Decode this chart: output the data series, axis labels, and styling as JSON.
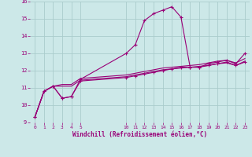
{
  "bg_color": "#cce8e8",
  "grid_color": "#aacccc",
  "line_color": "#990077",
  "title": "Windchill (Refroidissement éolien,°C)",
  "xlim": [
    -0.5,
    23.5
  ],
  "ylim": [
    9,
    16
  ],
  "yticks": [
    9,
    10,
    11,
    12,
    13,
    14,
    15,
    16
  ],
  "xticks": [
    0,
    1,
    2,
    3,
    4,
    5,
    10,
    11,
    12,
    13,
    14,
    15,
    16,
    17,
    18,
    19,
    20,
    21,
    22,
    23
  ],
  "series1_x": [
    0,
    1,
    2,
    3,
    4,
    5,
    10,
    11,
    12,
    13,
    14,
    15,
    16,
    17,
    18,
    19,
    20,
    21,
    22,
    23
  ],
  "series1_y": [
    9.3,
    10.8,
    11.1,
    10.4,
    10.5,
    11.5,
    13.0,
    13.5,
    14.9,
    15.3,
    15.5,
    15.7,
    15.1,
    12.2,
    12.2,
    12.4,
    12.5,
    12.6,
    12.4,
    13.0
  ],
  "series2_x": [
    0,
    1,
    2,
    3,
    4,
    5,
    10,
    11,
    12,
    13,
    14,
    15,
    16,
    17,
    18,
    19,
    20,
    21,
    22,
    23
  ],
  "series2_y": [
    9.3,
    10.8,
    11.1,
    10.4,
    10.5,
    11.4,
    11.6,
    11.7,
    11.8,
    11.9,
    12.0,
    12.1,
    12.2,
    12.2,
    12.2,
    12.3,
    12.4,
    12.5,
    12.3,
    12.5
  ],
  "series3_x": [
    0,
    1,
    2,
    3,
    4,
    5,
    10,
    11,
    12,
    13,
    14,
    15,
    16,
    17,
    18,
    19,
    20,
    21,
    22,
    23
  ],
  "series3_y": [
    9.3,
    10.8,
    11.1,
    11.1,
    11.1,
    11.45,
    11.65,
    11.75,
    11.85,
    11.95,
    12.05,
    12.1,
    12.15,
    12.2,
    12.25,
    12.3,
    12.4,
    12.45,
    12.3,
    12.55
  ],
  "series4_x": [
    0,
    1,
    2,
    3,
    4,
    5,
    10,
    11,
    12,
    13,
    14,
    15,
    16,
    17,
    18,
    19,
    20,
    21,
    22,
    23
  ],
  "series4_y": [
    9.3,
    10.8,
    11.1,
    11.2,
    11.2,
    11.55,
    11.75,
    11.85,
    11.95,
    12.05,
    12.15,
    12.2,
    12.25,
    12.3,
    12.35,
    12.45,
    12.55,
    12.6,
    12.45,
    12.7
  ]
}
